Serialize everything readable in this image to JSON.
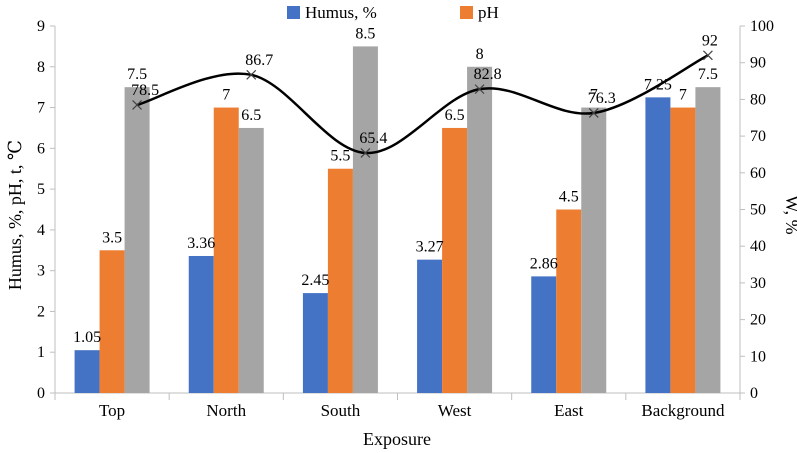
{
  "chart_data": {
    "type": "bar",
    "xlabel": "Exposure",
    "ylabel": "Humus, %, pH, t, ℃",
    "y2label": "W, %",
    "ylim": [
      0,
      9
    ],
    "y2lim": [
      0,
      100
    ],
    "yticks": [
      "0",
      "1",
      "2",
      "3",
      "4",
      "5",
      "6",
      "7",
      "8",
      "9"
    ],
    "y2ticks": [
      "0",
      "10",
      "20",
      "30",
      "40",
      "50",
      "60",
      "70",
      "80",
      "90",
      "100"
    ],
    "categories": [
      "Top",
      "North",
      "South",
      "West",
      "East",
      "Background"
    ],
    "legend_position": "top",
    "grid": false,
    "series": [
      {
        "name": "Humus, %",
        "color": "#4472C4",
        "values": [
          1.05,
          3.36,
          2.45,
          3.27,
          2.86,
          7.25
        ],
        "labels": [
          "1.05",
          "3.36",
          "2.45",
          "3.27",
          "2.86",
          "7.25"
        ]
      },
      {
        "name": "pH",
        "color": "#ED7D31",
        "values": [
          3.5,
          7,
          5.5,
          6.5,
          4.5,
          7
        ],
        "labels": [
          "3.5",
          "7",
          "5.5",
          "6.5",
          "4.5",
          "7"
        ]
      },
      {
        "color": "#A5A5A5",
        "values": [
          7.5,
          6.5,
          8.5,
          8,
          7,
          7.5
        ],
        "labels": [
          "7.5",
          "6.5",
          "8.5",
          "8",
          "7",
          "7.5"
        ]
      }
    ],
    "line_series": {
      "axis": "right",
      "color": "#000000",
      "marker": "x",
      "values": [
        78.5,
        86.7,
        65.4,
        82.8,
        76.3,
        92
      ],
      "labels": [
        "78.5",
        "86.7",
        "65.4",
        "82.8",
        "76.3",
        "92"
      ]
    }
  }
}
